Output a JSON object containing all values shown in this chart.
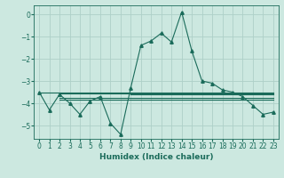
{
  "xlabel": "Humidex (Indice chaleur)",
  "ylabel": "",
  "bg_color": "#cce8e0",
  "line_color": "#1a6b5a",
  "grid_color": "#aed0c8",
  "xlim": [
    -0.5,
    23.5
  ],
  "ylim": [
    -5.6,
    0.4
  ],
  "yticks": [
    0,
    -1,
    -2,
    -3,
    -4,
    -5
  ],
  "xticks": [
    0,
    1,
    2,
    3,
    4,
    5,
    6,
    7,
    8,
    9,
    10,
    11,
    12,
    13,
    14,
    15,
    16,
    17,
    18,
    19,
    20,
    21,
    22,
    23
  ],
  "main_line": {
    "x": [
      0,
      1,
      2,
      3,
      4,
      5,
      6,
      7,
      8,
      9,
      10,
      11,
      12,
      13,
      14,
      15,
      16,
      17,
      18,
      19,
      20,
      21,
      22,
      23
    ],
    "y": [
      -3.5,
      -4.3,
      -3.6,
      -4.0,
      -4.5,
      -3.9,
      -3.7,
      -4.9,
      -5.4,
      -3.3,
      -1.4,
      -1.2,
      -0.85,
      -1.25,
      0.1,
      -1.65,
      -3.0,
      -3.1,
      -3.4,
      -3.5,
      -3.7,
      -4.1,
      -4.5,
      -4.4
    ]
  },
  "flat_lines": [
    {
      "x": [
        0,
        23
      ],
      "y": [
        -3.5,
        -3.5
      ]
    },
    {
      "x": [
        2,
        23
      ],
      "y": [
        -3.55,
        -3.55
      ]
    },
    {
      "x": [
        2,
        23
      ],
      "y": [
        -3.75,
        -3.75
      ]
    },
    {
      "x": [
        2,
        23
      ],
      "y": [
        -3.85,
        -3.85
      ]
    },
    {
      "x": [
        9,
        23
      ],
      "y": [
        -3.6,
        -3.6
      ]
    }
  ]
}
